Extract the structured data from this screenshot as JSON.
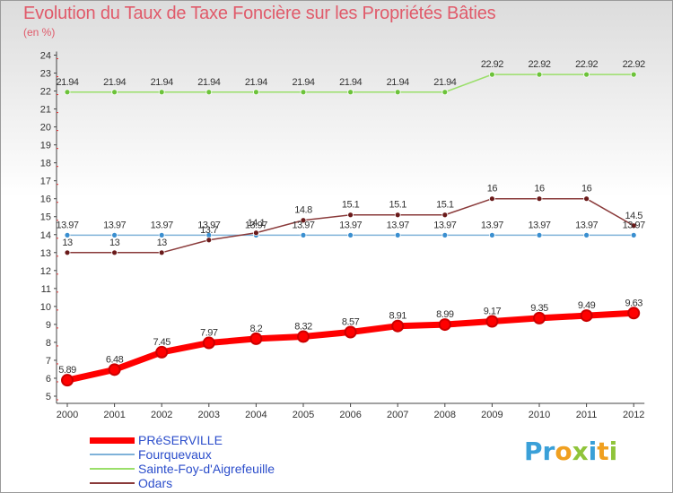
{
  "title": "Evolution du Taux de Taxe Foncière sur les Propriétés Bâties",
  "unit_label": "(en %)",
  "logo_text": "Proxiti",
  "chart_data": {
    "type": "line",
    "title": "Evolution du Taux de Taxe Foncière sur les Propriétés Bâties",
    "ylabel": "(en %)",
    "xlabel": "",
    "x": [
      "2000",
      "2001",
      "2002",
      "2003",
      "2004",
      "2005",
      "2006",
      "2007",
      "2008",
      "2009",
      "2010",
      "2011",
      "2012"
    ],
    "ylim": [
      5,
      24
    ],
    "yticks": [
      "5",
      "6",
      "7",
      "8",
      "9",
      "10",
      "11",
      "12",
      "13",
      "14",
      "15",
      "16",
      "17",
      "18",
      "19",
      "20",
      "21",
      "22",
      "23",
      "24"
    ],
    "grid": false,
    "legend_position": "bottom-left",
    "series": [
      {
        "name": "PRéSERVILLE",
        "color": "#ff0000",
        "dot_color": "#ff0000",
        "width": 7,
        "values": [
          5.89,
          6.48,
          7.45,
          7.97,
          8.2,
          8.32,
          8.57,
          8.91,
          8.99,
          9.17,
          9.35,
          9.49,
          9.63
        ],
        "labels": [
          "5.89",
          "6.48",
          "7.45",
          "7.97",
          "8.2",
          "8.32",
          "8.57",
          "8.91",
          "8.99",
          "9.17",
          "9.35",
          "9.49",
          "9.63"
        ]
      },
      {
        "name": "Fourquevaux",
        "color": "#7fb2d9",
        "dot_color": "#3a8fd0",
        "width": 1.5,
        "values": [
          13.97,
          13.97,
          13.97,
          13.97,
          13.97,
          13.97,
          13.97,
          13.97,
          13.97,
          13.97,
          13.97,
          13.97,
          13.97
        ],
        "labels": [
          "13.97",
          "13.97",
          "13.97",
          "13.97",
          "13.97",
          "13.97",
          "13.97",
          "13.97",
          "13.97",
          "13.97",
          "13.97",
          "13.97",
          "13.97"
        ]
      },
      {
        "name": "Sainte-Foy-d'Aigrefeuille",
        "color": "#9adf6a",
        "dot_color": "#6cc23a",
        "width": 1.5,
        "values": [
          21.94,
          21.94,
          21.94,
          21.94,
          21.94,
          21.94,
          21.94,
          21.94,
          21.94,
          22.92,
          22.92,
          22.92,
          22.92
        ],
        "labels": [
          "21.94",
          "21.94",
          "21.94",
          "21.94",
          "21.94",
          "21.94",
          "21.94",
          "21.94",
          "21.94",
          "22.92",
          "22.92",
          "22.92",
          "22.92"
        ]
      },
      {
        "name": "Odars",
        "color": "#8a3a3a",
        "dot_color": "#6a1a1a",
        "width": 1.5,
        "values": [
          13,
          13,
          13,
          13.7,
          14.1,
          14.8,
          15.1,
          15.1,
          15.1,
          16,
          16,
          16,
          14.5
        ],
        "labels": [
          "13",
          "13",
          "13",
          "13.7",
          "14.1",
          "14.8",
          "15.1",
          "15.1",
          "15.1",
          "16",
          "16",
          "16",
          "14.5"
        ]
      }
    ]
  }
}
